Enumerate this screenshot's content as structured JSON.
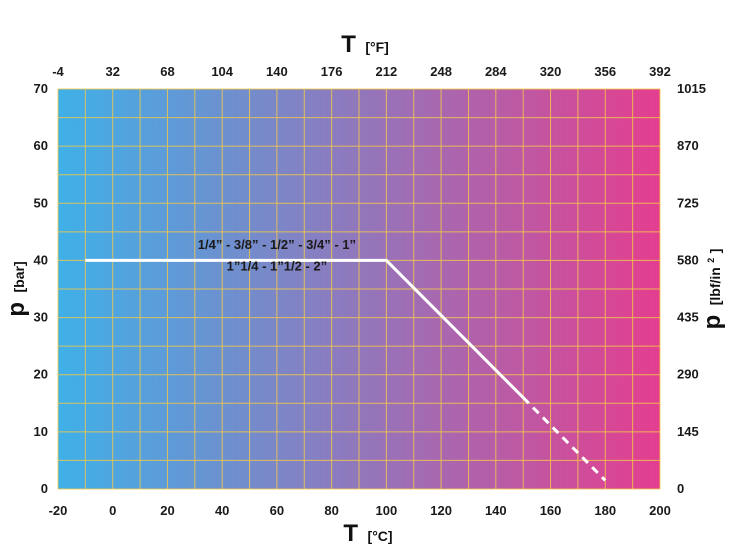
{
  "chart_data": {
    "type": "line",
    "title": "",
    "x_bottom": {
      "label": "T",
      "unit": "[°C]",
      "range": [
        -20,
        200
      ],
      "ticks": [
        -20,
        0,
        20,
        40,
        60,
        80,
        100,
        120,
        140,
        160,
        180,
        200
      ]
    },
    "x_top": {
      "label": "T",
      "unit": "[°F]",
      "ticks": [
        -4,
        32,
        68,
        104,
        140,
        176,
        212,
        248,
        284,
        320,
        356,
        392
      ]
    },
    "y_left": {
      "label": "p",
      "unit": "[bar]",
      "range": [
        0,
        70
      ],
      "ticks": [
        0,
        10,
        20,
        30,
        40,
        50,
        60,
        70
      ]
    },
    "y_right": {
      "label": "p",
      "unit": "[lbf/in",
      "unit_sup": "2",
      "unit_close": "]",
      "ticks": [
        0,
        145,
        290,
        435,
        580,
        725,
        870,
        1015
      ]
    },
    "grid": true,
    "background_gradient": [
      "#3fb0e8",
      "#e43e8f"
    ],
    "grid_color": "#f2c84b",
    "series": [
      {
        "style": "solid",
        "color": "#ffffff",
        "x": [
          -10,
          100,
          150
        ],
        "y": [
          40,
          40,
          16
        ]
      },
      {
        "style": "dashed",
        "color": "#ffffff",
        "x": [
          150,
          180
        ],
        "y": [
          16,
          1.5
        ]
      }
    ],
    "annotations": [
      {
        "text": "1/4” - 3/8” - 1/2” - 3/4” - 1”",
        "x": 60,
        "y": 42
      },
      {
        "text": "1”1/4 - 1”1/2 - 2”",
        "x": 60,
        "y": 38.2
      }
    ]
  }
}
